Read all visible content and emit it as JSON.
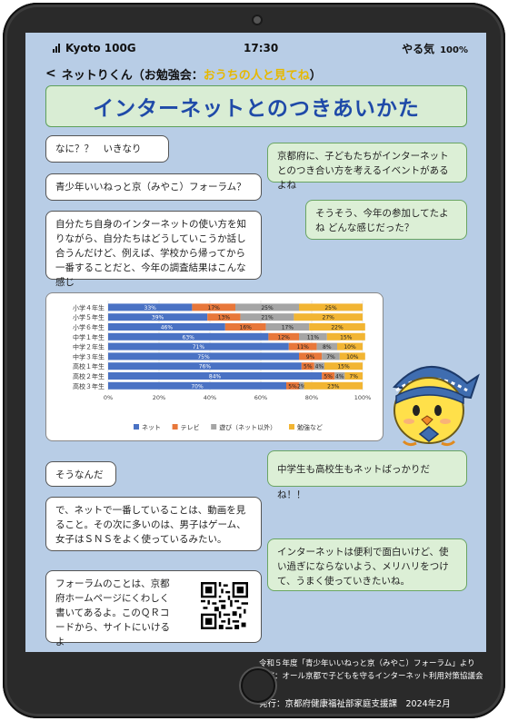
{
  "status": {
    "carrier": "Kyoto 100G",
    "time": "17:30",
    "battery_label": "やる気",
    "battery_pct": "100%"
  },
  "nav": {
    "back": "<",
    "name": "ネットりくん",
    "paren_open": "（お勉強会：",
    "highlight": "おうちの人と見てね",
    "paren_close": "）"
  },
  "title": "インターネットとのつきあいかた",
  "messages": {
    "m1": "なに？？　いきなり",
    "m2": "京都府に、子どもたちがインターネットとのつき合い方を考えるイベントがあるよね",
    "m3": "青少年いいねっと京（みやこ）フォーラム？",
    "m4": "そうそう、今年の参加してたよね どんな感じだった？",
    "m5": "自分たち自身のインターネットの使い方を知りながら、自分たちはどうしていこうか話し合うんだけど、例えば、学校から帰ってから一番することだと、今年の調査結果はこんな感じ",
    "m6": "中学生も高校生もネットばっかりだね！！",
    "m7": "そうなんだ",
    "m8": "で、ネットで一番していることは、動画を見ること。その次に多いのは、男子はゲーム、女子はＳＮＳをよく使っているみたい。",
    "m9": "インターネットは便利で面白いけど、使い過ぎにならないよう、メリハリをつけて、うまく使っていきたいね。",
    "m10": "フォーラムのことは、京都府ホームページにくわしく書いてあるよ。このＱＲコードから、サイトにいけるよ"
  },
  "footer": {
    "line1": "令和５年度「青少年いいねっと京（みやこ）フォーラム」より",
    "line2": "主催：オール京都で子どもを守るインターネット利用対策協議会",
    "line3": "発行：京都府健康福祉部家庭支援課　2024年2月"
  },
  "colors": {
    "net": "#4a72c4",
    "tv": "#e8773a",
    "play": "#a5a5a5",
    "study": "#f2b533",
    "screen": "#b8cde6"
  },
  "chart_data": {
    "type": "bar",
    "stacked": "horizontal-100",
    "categories": [
      "小学４年生",
      "小学５年生",
      "小学６年生",
      "中学１年生",
      "中学２年生",
      "中学３年生",
      "高校１年生",
      "高校２年生",
      "高校３年生"
    ],
    "series": [
      {
        "name": "ネット",
        "values": [
          33,
          39,
          46,
          63,
          71,
          75,
          76,
          84,
          70
        ],
        "labels": [
          "33%",
          "39%",
          "46%",
          "63%",
          "71%",
          "75%",
          "76%",
          "84%",
          "70%"
        ]
      },
      {
        "name": "テレビ",
        "values": [
          17,
          13,
          16,
          12,
          11,
          9,
          5,
          5,
          5
        ],
        "labels": [
          "17%",
          "13%",
          "16%",
          "12%",
          "11%",
          "9%",
          "5%",
          "5%",
          "5%"
        ]
      },
      {
        "name": "遊び（ネット以外）",
        "values": [
          25,
          21,
          17,
          11,
          8,
          7,
          4,
          4,
          2
        ],
        "labels": [
          "25%",
          "21%",
          "17%",
          "11%",
          "8%",
          "7%",
          "4%",
          "4%",
          "2%"
        ]
      },
      {
        "name": "勉強など",
        "values": [
          25,
          27,
          22,
          15,
          10,
          10,
          15,
          7,
          23
        ],
        "labels": [
          "25%",
          "27%",
          "22%",
          "15%",
          "10%",
          "10%",
          "15%",
          "7%",
          "23%"
        ]
      }
    ],
    "xticks": [
      "0%",
      "20%",
      "40%",
      "60%",
      "80%",
      "100%"
    ],
    "xlim": [
      0,
      100
    ],
    "grid": true,
    "legend": "bottom"
  }
}
